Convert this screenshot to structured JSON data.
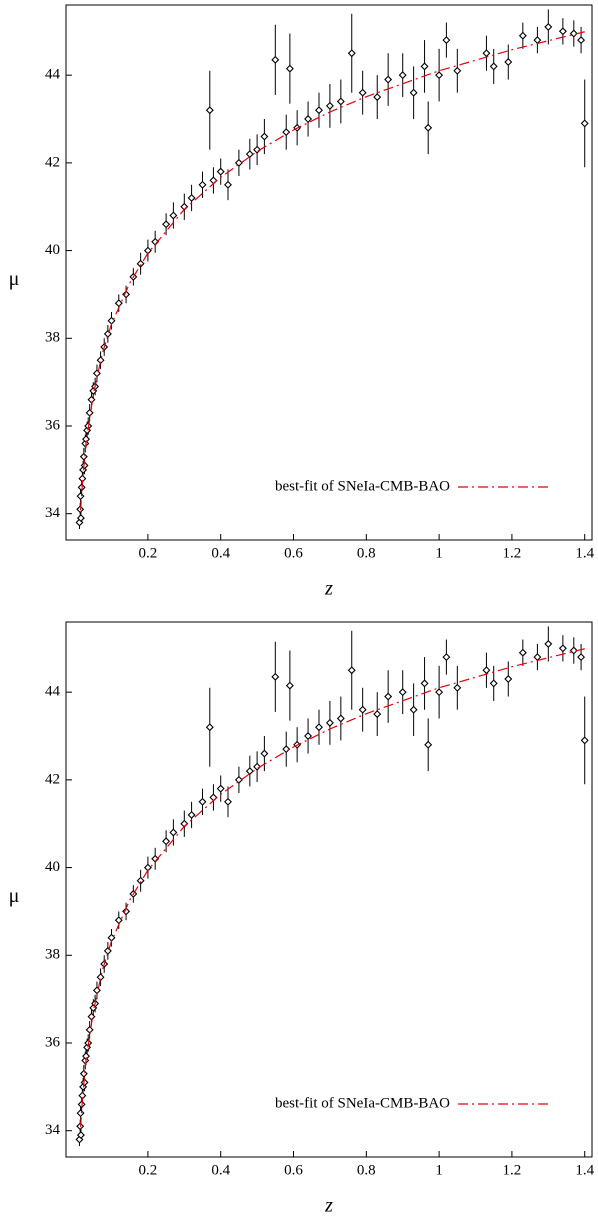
{
  "chart_data": [
    {
      "type": "scatter",
      "xlabel": "z",
      "ylabel": "μ",
      "xlim": [
        -0.025,
        1.42
      ],
      "ylim": [
        33.4,
        45.6
      ],
      "xticks": [
        0.2,
        0.4,
        0.6,
        0.8,
        1,
        1.2,
        1.4
      ],
      "yticks": [
        34,
        36,
        38,
        40,
        42,
        44
      ],
      "legend": "bottom-right",
      "series": [
        {
          "color": "#000000",
          "x": [
            0.012,
            0.014,
            0.015,
            0.016,
            0.018,
            0.02,
            0.022,
            0.024,
            0.026,
            0.028,
            0.03,
            0.033,
            0.036,
            0.04,
            0.045,
            0.05,
            0.055,
            0.06,
            0.07,
            0.08,
            0.09,
            0.1,
            0.12,
            0.14,
            0.16,
            0.18,
            0.2,
            0.22,
            0.25,
            0.27,
            0.3,
            0.32,
            0.35,
            0.37,
            0.38,
            0.4,
            0.42,
            0.45,
            0.48,
            0.5,
            0.52,
            0.55,
            0.58,
            0.59,
            0.61,
            0.64,
            0.67,
            0.7,
            0.73,
            0.76,
            0.79,
            0.83,
            0.86,
            0.9,
            0.93,
            0.96,
            0.97,
            1.0,
            1.02,
            1.05,
            1.13,
            1.15,
            1.19,
            1.23,
            1.27,
            1.3,
            1.34,
            1.37,
            1.39,
            1.4
          ],
          "values": [
            33.8,
            34.1,
            34.4,
            33.9,
            34.6,
            34.8,
            35.0,
            35.3,
            35.1,
            35.6,
            35.7,
            35.9,
            36.0,
            36.3,
            36.6,
            36.8,
            36.9,
            37.2,
            37.5,
            37.8,
            38.1,
            38.4,
            38.8,
            39.0,
            39.4,
            39.7,
            40.0,
            40.2,
            40.6,
            40.8,
            41.0,
            41.2,
            41.5,
            43.2,
            41.6,
            41.8,
            41.5,
            42.0,
            42.2,
            42.3,
            42.6,
            44.35,
            42.7,
            44.15,
            42.8,
            43.0,
            43.2,
            43.3,
            43.4,
            44.5,
            43.6,
            43.5,
            43.9,
            44.0,
            43.6,
            44.2,
            42.8,
            44.0,
            44.8,
            44.1,
            44.5,
            44.2,
            44.3,
            44.9,
            44.8,
            45.1,
            45.0,
            44.95,
            44.8,
            42.9
          ],
          "errors": [
            0.15,
            0.15,
            0.2,
            0.15,
            0.2,
            0.2,
            0.2,
            0.2,
            0.2,
            0.2,
            0.2,
            0.2,
            0.2,
            0.2,
            0.2,
            0.2,
            0.2,
            0.2,
            0.2,
            0.2,
            0.2,
            0.2,
            0.2,
            0.2,
            0.2,
            0.25,
            0.25,
            0.25,
            0.25,
            0.3,
            0.3,
            0.3,
            0.3,
            0.9,
            0.3,
            0.3,
            0.35,
            0.3,
            0.35,
            0.35,
            0.4,
            0.8,
            0.4,
            0.8,
            0.4,
            0.4,
            0.4,
            0.5,
            0.5,
            0.9,
            0.5,
            0.5,
            0.6,
            0.5,
            0.6,
            0.6,
            0.6,
            0.6,
            0.4,
            0.5,
            0.4,
            0.4,
            0.4,
            0.3,
            0.3,
            0.4,
            0.3,
            0.3,
            0.3,
            1.0
          ]
        },
        {
          "name": "best-fit of SNeIa-CMB-BAO",
          "color": "#e8000b",
          "style": "dashdot",
          "x": [
            0.015,
            0.02,
            0.03,
            0.05,
            0.075,
            0.1,
            0.15,
            0.2,
            0.3,
            0.4,
            0.5,
            0.6,
            0.7,
            0.8,
            1.0,
            1.2,
            1.4
          ],
          "values": [
            34.08,
            34.7,
            35.6,
            36.72,
            37.66,
            38.32,
            39.26,
            39.94,
            40.94,
            41.67,
            42.26,
            42.75,
            43.16,
            43.51,
            44.1,
            44.58,
            44.99
          ]
        }
      ]
    },
    {
      "type": "scatter",
      "xlabel": "z",
      "ylabel": "μ",
      "xlim": [
        -0.025,
        1.42
      ],
      "ylim": [
        33.4,
        45.6
      ],
      "xticks": [
        0.2,
        0.4,
        0.6,
        0.8,
        1,
        1.2,
        1.4
      ],
      "yticks": [
        34,
        36,
        38,
        40,
        42,
        44
      ],
      "legend": "bottom-right",
      "series": [
        {
          "color": "#000000",
          "x": [
            0.012,
            0.014,
            0.015,
            0.016,
            0.018,
            0.02,
            0.022,
            0.024,
            0.026,
            0.028,
            0.03,
            0.033,
            0.036,
            0.04,
            0.045,
            0.05,
            0.055,
            0.06,
            0.07,
            0.08,
            0.09,
            0.1,
            0.12,
            0.14,
            0.16,
            0.18,
            0.2,
            0.22,
            0.25,
            0.27,
            0.3,
            0.32,
            0.35,
            0.37,
            0.38,
            0.4,
            0.42,
            0.45,
            0.48,
            0.5,
            0.52,
            0.55,
            0.58,
            0.59,
            0.61,
            0.64,
            0.67,
            0.7,
            0.73,
            0.76,
            0.79,
            0.83,
            0.86,
            0.9,
            0.93,
            0.96,
            0.97,
            1.0,
            1.02,
            1.05,
            1.13,
            1.15,
            1.19,
            1.23,
            1.27,
            1.3,
            1.34,
            1.37,
            1.39,
            1.4
          ],
          "values": [
            33.8,
            34.1,
            34.4,
            33.9,
            34.6,
            34.8,
            35.0,
            35.3,
            35.1,
            35.6,
            35.7,
            35.9,
            36.0,
            36.3,
            36.6,
            36.8,
            36.9,
            37.2,
            37.5,
            37.8,
            38.1,
            38.4,
            38.8,
            39.0,
            39.4,
            39.7,
            40.0,
            40.2,
            40.6,
            40.8,
            41.0,
            41.2,
            41.5,
            43.2,
            41.6,
            41.8,
            41.5,
            42.0,
            42.2,
            42.3,
            42.6,
            44.35,
            42.7,
            44.15,
            42.8,
            43.0,
            43.2,
            43.3,
            43.4,
            44.5,
            43.6,
            43.5,
            43.9,
            44.0,
            43.6,
            44.2,
            42.8,
            44.0,
            44.8,
            44.1,
            44.5,
            44.2,
            44.3,
            44.9,
            44.8,
            45.1,
            45.0,
            44.95,
            44.8,
            42.9
          ],
          "errors": [
            0.15,
            0.15,
            0.2,
            0.15,
            0.2,
            0.2,
            0.2,
            0.2,
            0.2,
            0.2,
            0.2,
            0.2,
            0.2,
            0.2,
            0.2,
            0.2,
            0.2,
            0.2,
            0.2,
            0.2,
            0.2,
            0.2,
            0.2,
            0.2,
            0.2,
            0.25,
            0.25,
            0.25,
            0.25,
            0.3,
            0.3,
            0.3,
            0.3,
            0.9,
            0.3,
            0.3,
            0.35,
            0.3,
            0.35,
            0.35,
            0.4,
            0.8,
            0.4,
            0.8,
            0.4,
            0.4,
            0.4,
            0.5,
            0.5,
            0.9,
            0.5,
            0.5,
            0.6,
            0.5,
            0.6,
            0.6,
            0.6,
            0.6,
            0.4,
            0.5,
            0.4,
            0.4,
            0.4,
            0.3,
            0.3,
            0.4,
            0.3,
            0.3,
            0.3,
            1.0
          ]
        },
        {
          "name": "best-fit of SNeIa-CMB-BAO",
          "color": "#e8000b",
          "style": "dashdot",
          "x": [
            0.015,
            0.02,
            0.03,
            0.05,
            0.075,
            0.1,
            0.15,
            0.2,
            0.3,
            0.4,
            0.5,
            0.6,
            0.7,
            0.8,
            1.0,
            1.2,
            1.4
          ],
          "values": [
            34.08,
            34.7,
            35.6,
            36.72,
            37.66,
            38.32,
            39.26,
            39.94,
            40.94,
            41.67,
            42.26,
            42.75,
            43.16,
            43.51,
            44.1,
            44.58,
            44.99
          ]
        }
      ]
    }
  ]
}
